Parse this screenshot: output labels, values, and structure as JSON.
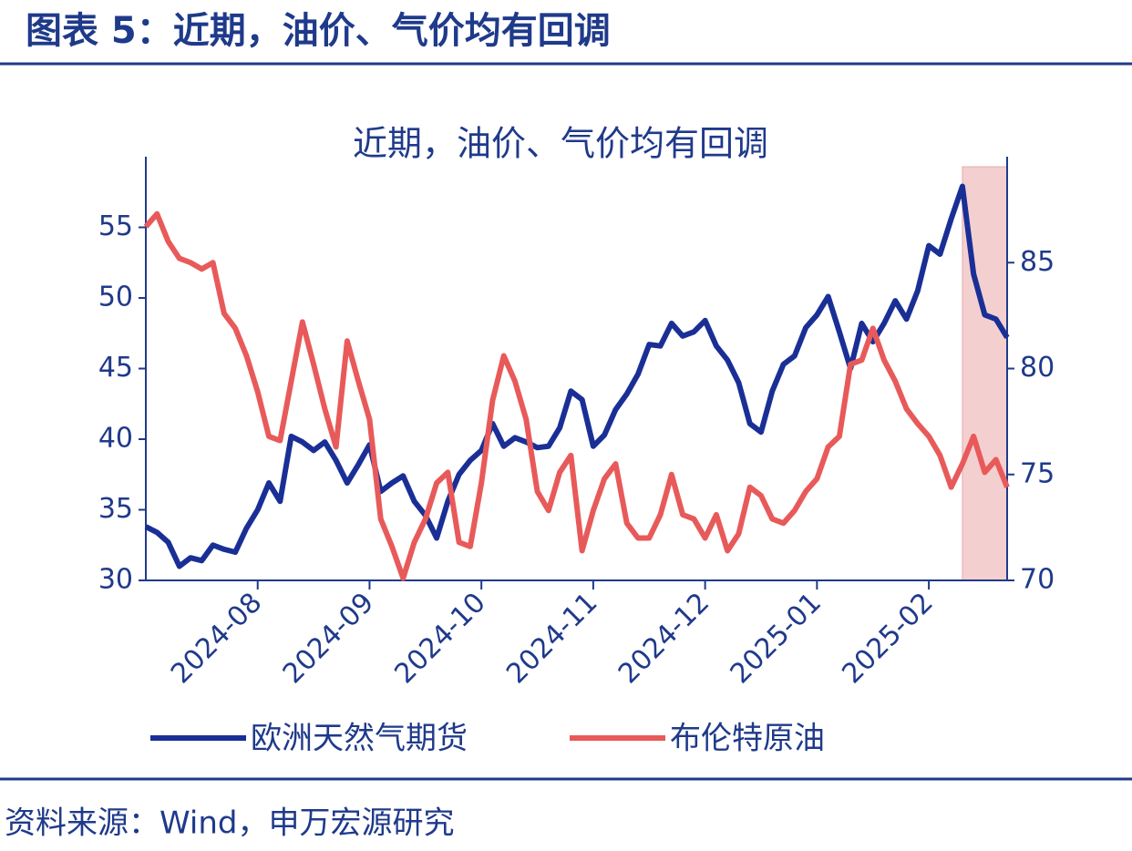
{
  "header": {
    "title": "图表 5：近期，油价、气价均有回调"
  },
  "chart_data": {
    "type": "line",
    "title": "近期，油价、气价均有回调",
    "x": [
      0,
      0.1,
      0.2,
      0.3,
      0.4,
      0.5,
      0.6,
      0.7,
      0.8,
      0.9,
      1,
      1.1,
      1.2,
      1.3,
      1.4,
      1.5,
      1.6,
      1.7,
      1.8,
      1.9,
      2,
      2.1,
      2.2,
      2.3,
      2.4,
      2.5,
      2.6,
      2.7,
      2.8,
      2.9,
      3,
      3.1,
      3.2,
      3.3,
      3.4,
      3.5,
      3.6,
      3.7,
      3.8,
      3.9,
      4,
      4.1,
      4.2,
      4.3,
      4.4,
      4.5,
      4.6,
      4.7,
      4.8,
      4.9,
      5,
      5.1,
      5.2,
      5.3,
      5.4,
      5.5,
      5.6,
      5.7,
      5.8,
      5.9,
      6,
      6.1,
      6.2,
      6.3,
      6.4,
      6.5,
      6.6,
      6.7,
      6.8,
      6.9,
      7,
      7.1,
      7.2,
      7.3,
      7.4,
      7.5,
      7.6,
      7.7
    ],
    "xlim": [
      0,
      7.7
    ],
    "xticks": [
      {
        "value": 1,
        "label": "2024-08"
      },
      {
        "value": 2,
        "label": "2024-09"
      },
      {
        "value": 3,
        "label": "2024-10"
      },
      {
        "value": 4,
        "label": "2024-11"
      },
      {
        "value": 5,
        "label": "2024-12"
      },
      {
        "value": 6,
        "label": "2025-01"
      },
      {
        "value": 7,
        "label": "2025-02"
      }
    ],
    "ylim": [
      30,
      60
    ],
    "yticks": [
      30,
      35,
      40,
      45,
      50,
      55
    ],
    "y2lim": [
      70,
      90
    ],
    "y2ticks": [
      70,
      75,
      80,
      85
    ],
    "highlight": [
      7.3,
      7.7
    ],
    "highlight_color": "#f2c4c4",
    "series": [
      {
        "name": "欧洲天然气期货",
        "color": "#1a2f96",
        "axis": "y",
        "values": [
          33.8,
          33.4,
          32.7,
          31,
          31.6,
          31.4,
          32.5,
          32.2,
          32,
          33.7,
          35,
          36.9,
          35.6,
          40.2,
          39.8,
          39.2,
          39.8,
          38.5,
          36.9,
          38.2,
          39.6,
          36.3,
          36.9,
          37.4,
          35.6,
          34.6,
          33,
          35.6,
          37.5,
          38.5,
          39.2,
          41.1,
          39.5,
          40.1,
          39.8,
          39.4,
          39.5,
          40.8,
          43.4,
          42.8,
          39.5,
          40.3,
          42.1,
          43.2,
          44.6,
          46.7,
          46.6,
          48.2,
          47.3,
          47.6,
          48.4,
          46.6,
          45.6,
          44,
          41.1,
          40.5,
          43.4,
          45.3,
          45.9,
          47.9,
          48.8,
          50.1,
          47.6,
          45,
          48.2,
          46.9,
          48.2,
          49.8,
          48.5,
          50.5,
          53.7,
          53.1,
          55.6,
          57.9,
          51.7,
          48.8,
          48.5,
          47.2
        ]
      },
      {
        "name": "布伦特原油",
        "color": "#e85a5a",
        "axis": "y2",
        "values": [
          86.7,
          87.3,
          86,
          85.2,
          85,
          84.7,
          85,
          82.6,
          81.9,
          80.6,
          78.9,
          76.8,
          76.6,
          79.4,
          82.2,
          80.2,
          78.1,
          76.3,
          81.3,
          79.4,
          77.6,
          72.9,
          71.6,
          70.1,
          71.8,
          72.9,
          74.6,
          75.1,
          71.8,
          71.6,
          74.6,
          78.5,
          80.6,
          79.4,
          77.6,
          74.2,
          73.3,
          75.1,
          75.9,
          71.4,
          73.3,
          74.8,
          75.5,
          72.7,
          72,
          72,
          73.1,
          75,
          73.1,
          72.9,
          72,
          73.1,
          71.4,
          72.2,
          74.4,
          74,
          72.9,
          72.7,
          73.3,
          74.2,
          74.8,
          76.3,
          76.8,
          80.2,
          80.4,
          81.9,
          80.4,
          79.4,
          78.1,
          77.4,
          76.8,
          75.9,
          74.4,
          75.5,
          76.8,
          75.1,
          75.7,
          74.4
        ]
      }
    ]
  },
  "footer": {
    "source": "资料来源：Wind，申万宏源研究"
  }
}
